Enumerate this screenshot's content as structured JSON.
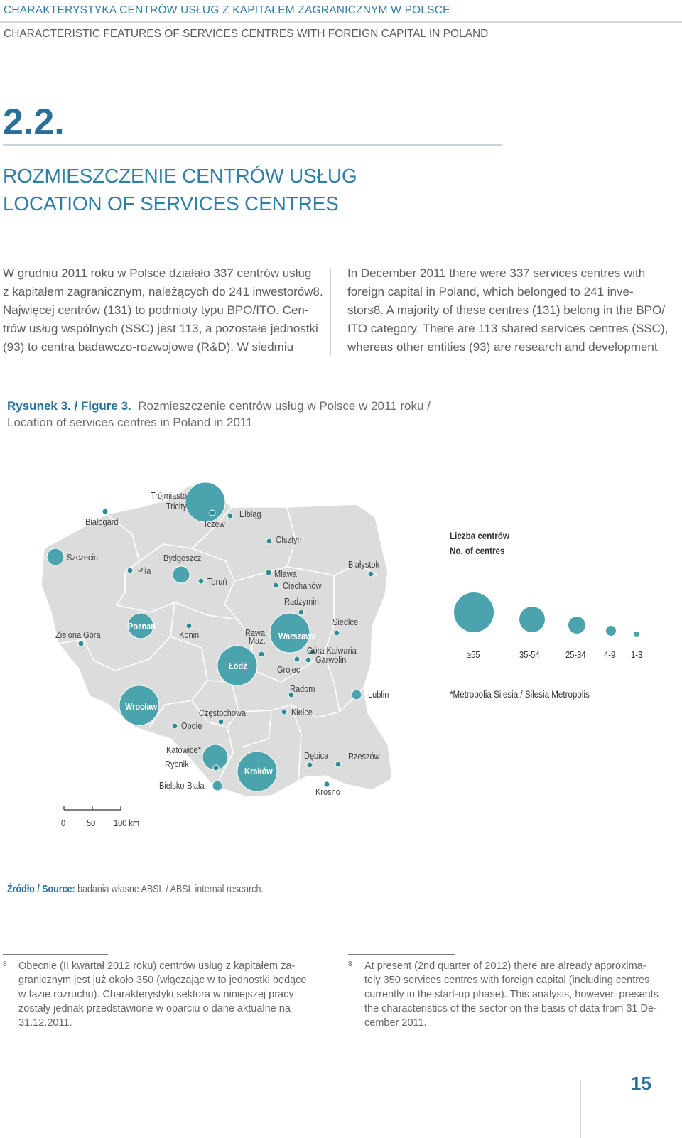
{
  "header": {
    "line1": "CHARAKTERYSTYKA CENTRÓW USŁUG Z KAPITAŁEM ZAGRANICZNYM W POLSCE",
    "line2": "CHARACTERISTIC FEATURES OF SERVICES CENTRES WITH FOREIGN CAPITAL IN POLAND"
  },
  "section": {
    "number": "2.2.",
    "title_pl": "ROZMIESZCZENIE CENTRÓW USŁUG",
    "title_en": "LOCATION OF SERVICES CENTRES"
  },
  "intro_pl": [
    "W grudniu 2011 roku w Polsce działało 337 centrów usług",
    "z kapitałem zagranicznym, należących do 241 inwestorów8.",
    "Najwięcej centrów (131) to podmioty typu BPO/ITO. Cen-",
    "trów usług wspólnych (SSC) jest 113, a pozostałe jednostki",
    "(93) to centra badawczo-rozwojowe (R&D). W siedmiu"
  ],
  "intro_en": [
    "In December 2011 there were 337 services centres with",
    "foreign capital in Poland, which belonged to 241 inve-",
    "stors8. A majority of these centres (131) belong in the BPO/",
    "ITO category. There are 113 shared services centres (SSC),",
    "whereas other entities (93) are research and development"
  ],
  "figure": {
    "label": "Rysunek 3. / Figure 3.",
    "caption_pl": "Rozmieszczenie centrów usług w Polsce w 2011 roku /",
    "caption_en": "Location of services centres in Poland in 2011"
  },
  "map": {
    "colors": {
      "land": "#dcdcdc",
      "border": "#ffffff",
      "bubble": "#4aa3ad",
      "bubble_dark": "#2f8b96"
    },
    "cities": [
      {
        "name": "Trójmiasto",
        "name2": "Tricity",
        "class": "≥55"
      },
      {
        "name": "Białogard",
        "class": "1-3"
      },
      {
        "name": "Tczew",
        "class": "1-3"
      },
      {
        "name": "Elbląg",
        "class": "1-3"
      },
      {
        "name": "Olsztyn",
        "class": "1-3"
      },
      {
        "name": "Szczecin",
        "class": "25-34"
      },
      {
        "name": "Piła",
        "class": "1-3"
      },
      {
        "name": "Bydgoszcz",
        "class": "25-34"
      },
      {
        "name": "Toruń",
        "class": "1-3"
      },
      {
        "name": "Mława",
        "class": "1-3"
      },
      {
        "name": "Ciechanów",
        "class": "1-3"
      },
      {
        "name": "Białystok",
        "class": "1-3"
      },
      {
        "name": "Radzymin",
        "class": "1-3"
      },
      {
        "name": "Zielona Góra",
        "class": "1-3"
      },
      {
        "name": "Poznań",
        "class": "35-54"
      },
      {
        "name": "Konin",
        "class": "1-3"
      },
      {
        "name": "Rawa",
        "name2": "Maz.",
        "class": "1-3"
      },
      {
        "name": "Warszawa",
        "class": "≥55"
      },
      {
        "name": "Siedlce",
        "class": "1-3"
      },
      {
        "name": "Góra Kalwaria",
        "class": "1-3"
      },
      {
        "name": "Garwolin",
        "class": "1-3"
      },
      {
        "name": "Łódź",
        "class": "≥55"
      },
      {
        "name": "Grójec",
        "class": "1-3"
      },
      {
        "name": "Radom",
        "class": "1-3"
      },
      {
        "name": "Lublin",
        "class": "4-9"
      },
      {
        "name": "Wrocław",
        "class": "≥55"
      },
      {
        "name": "Częstochowa",
        "class": "1-3"
      },
      {
        "name": "Opole",
        "class": "1-3"
      },
      {
        "name": "Kielce",
        "class": "1-3"
      },
      {
        "name": "Katowice*",
        "class": "35-54"
      },
      {
        "name": "Rybnik",
        "class": "1-3"
      },
      {
        "name": "Kraków",
        "class": "≥55"
      },
      {
        "name": "Dębica",
        "class": "1-3"
      },
      {
        "name": "Rzeszów",
        "class": "1-3"
      },
      {
        "name": "Bielsko-Biała",
        "class": "4-9"
      },
      {
        "name": "Krosno",
        "class": "1-3"
      }
    ],
    "scale": {
      "ticks": [
        "0",
        "50",
        "100 km"
      ]
    }
  },
  "legend": {
    "title_pl": "Liczba centrów",
    "title_en": "No. of centres",
    "classes": [
      "≥55",
      "35-54",
      "25-34",
      "4-9",
      "1-3"
    ],
    "note": "*Metropolia Silesia / Silesia Metropolis"
  },
  "source": {
    "label": "Źródło / Source:",
    "text": "badania własne ABSL / ABSL internal research."
  },
  "footnote_pl": {
    "num": "8",
    "lines": [
      "Obecnie (II kwartał 2012 roku) centrów usług z kapitałem za-",
      "granicznym jest już około 350 (włączając w to jednostki będące",
      "w fazie rozruchu). Charakterystyki sektora w niniejszej pracy",
      "zostały jednak przedstawione w oparciu o dane aktualne na",
      "31.12.2011."
    ]
  },
  "footnote_en": {
    "num": "8",
    "lines": [
      "At present (2nd quarter of 2012) there are already approxima-",
      "tely 350 services centres with foreign capital (including centres",
      "currently in the start-up phase). This analysis, however, presents",
      "the characteristics of the sector on the basis of data from 31 De-",
      "cember 2011."
    ]
  },
  "page_number": "15"
}
